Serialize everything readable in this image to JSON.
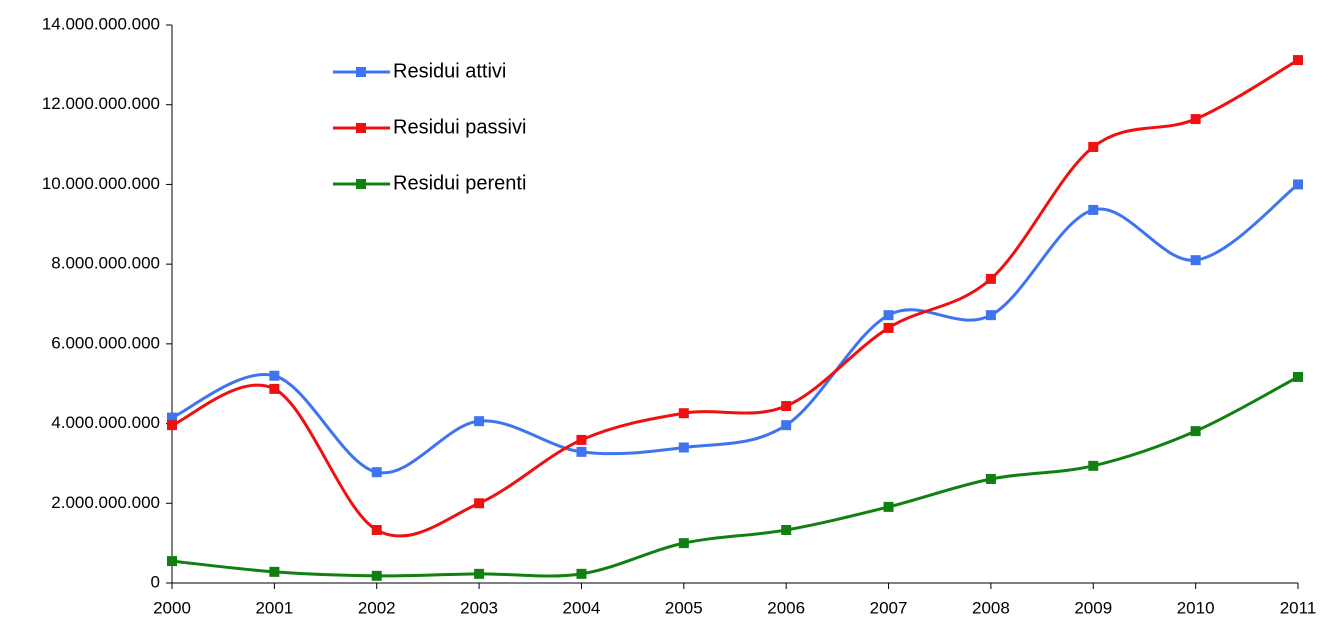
{
  "chart_data": {
    "type": "line",
    "smooth": true,
    "grid": false,
    "legend": "upper left",
    "x": [
      2000,
      2001,
      2002,
      2003,
      2004,
      2005,
      2006,
      2007,
      2008,
      2009,
      2010,
      2011
    ],
    "xlim": [
      2000,
      2011
    ],
    "xticks": [
      2000,
      2001,
      2002,
      2003,
      2004,
      2005,
      2006,
      2007,
      2008,
      2009,
      2010,
      2011
    ],
    "ylim": [
      0,
      14000000000
    ],
    "yticks": [
      0,
      {
        "value": 2000000000,
        "label": "2.000.000.000"
      },
      {
        "value": 4000000000,
        "label": "4.000.000.000"
      },
      {
        "value": 6000000000,
        "label": "6.000.000.000"
      },
      {
        "value": 8000000000,
        "label": "8.000.000.000"
      },
      {
        "value": 10000000000,
        "label": "10.000.000.000"
      },
      {
        "value": 12000000000,
        "label": "12.000.000.000"
      },
      {
        "value": 14000000000,
        "label": "14.000.000.000"
      }
    ],
    "series": [
      {
        "name": "Residui attivi",
        "color": "#3f74f0",
        "values": [
          4150000000,
          5200000000,
          2780000000,
          4060000000,
          3290000000,
          3400000000,
          3960000000,
          6720000000,
          6720000000,
          9360000000,
          8100000000,
          10000000000
        ]
      },
      {
        "name": "Residui passivi",
        "color": "#f01010",
        "values": [
          3960000000,
          4870000000,
          1330000000,
          2000000000,
          3590000000,
          4260000000,
          4440000000,
          6400000000,
          7630000000,
          10940000000,
          11640000000,
          13120000000
        ]
      },
      {
        "name": "Residui perenti",
        "color": "#108010",
        "values": [
          550000000,
          280000000,
          180000000,
          230000000,
          230000000,
          1000000000,
          1330000000,
          1910000000,
          2610000000,
          2940000000,
          3810000000,
          5170000000
        ]
      }
    ]
  }
}
